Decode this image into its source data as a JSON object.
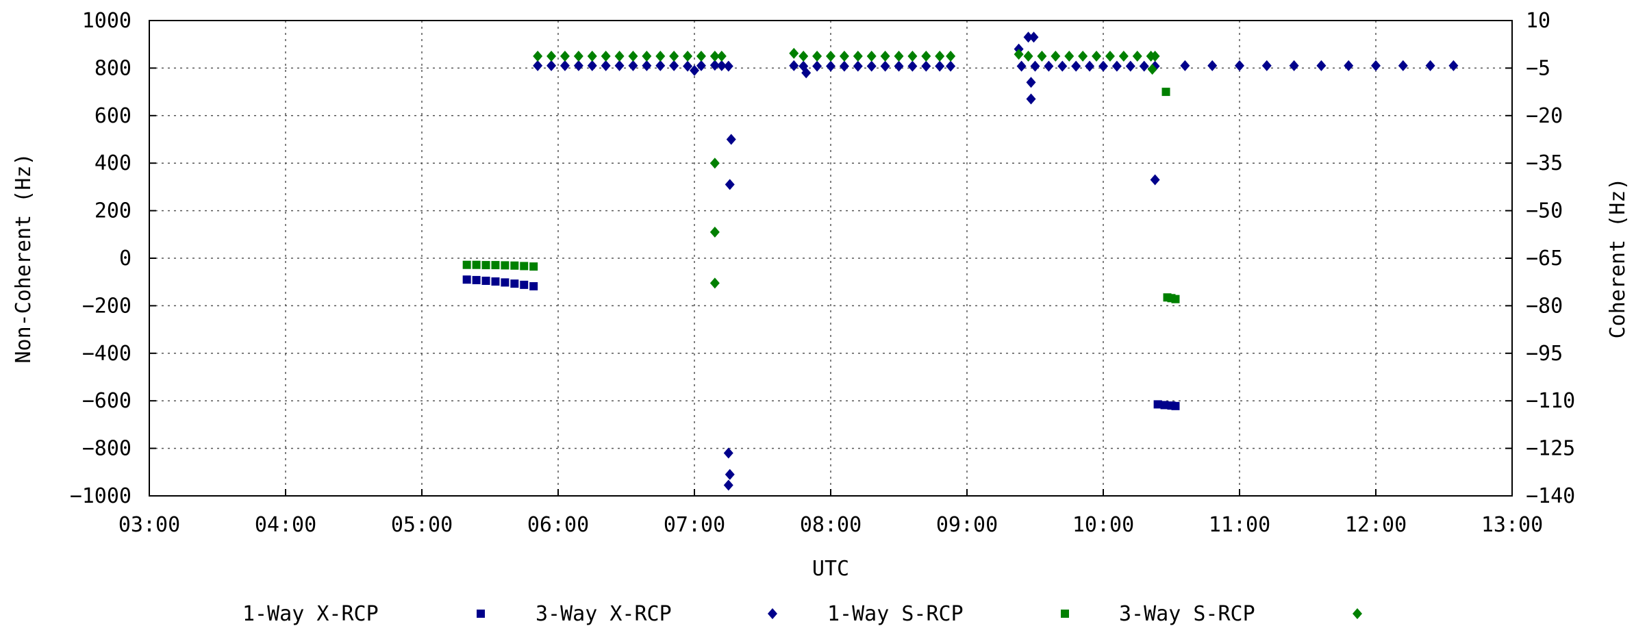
{
  "chart_data": {
    "type": "scatter",
    "xlabel": "UTC",
    "ylabel_left": "Non-Coherent (Hz)",
    "ylabel_right": "Coherent (Hz)",
    "xlim": [
      3,
      13
    ],
    "ylim_left": [
      -1000,
      1000
    ],
    "ylim_right": [
      -140,
      10
    ],
    "x_ticks": [
      "03:00",
      "04:00",
      "05:00",
      "06:00",
      "07:00",
      "08:00",
      "09:00",
      "10:00",
      "11:00",
      "12:00",
      "13:00"
    ],
    "y_ticks_left": [
      "1000",
      "800",
      "600",
      "400",
      "200",
      "0",
      "−200",
      "−400",
      "−600",
      "−800",
      "−1000"
    ],
    "y_ticks_right": [
      "10",
      "−5",
      "−20",
      "−35",
      "−50",
      "−65",
      "−80",
      "−95",
      "−110",
      "−125",
      "−140"
    ],
    "grid": true,
    "legend_position": "bottom",
    "series": [
      {
        "name": "1-Way X-RCP",
        "marker": "square",
        "color": "#00008b",
        "points": [
          [
            5.33,
            -90
          ],
          [
            5.4,
            -92
          ],
          [
            5.47,
            -95
          ],
          [
            5.54,
            -98
          ],
          [
            5.61,
            -102
          ],
          [
            5.68,
            -107
          ],
          [
            5.75,
            -112
          ],
          [
            5.82,
            -118
          ],
          [
            10.4,
            -615
          ],
          [
            10.45,
            -618
          ],
          [
            10.5,
            -620
          ],
          [
            10.53,
            -622
          ]
        ]
      },
      {
        "name": "3-Way X-RCP",
        "marker": "diamond",
        "color": "#00008b",
        "points": [
          [
            5.85,
            810
          ],
          [
            5.95,
            810
          ],
          [
            6.05,
            810
          ],
          [
            6.15,
            810
          ],
          [
            6.25,
            810
          ],
          [
            6.35,
            810
          ],
          [
            6.45,
            810
          ],
          [
            6.55,
            810
          ],
          [
            6.65,
            810
          ],
          [
            6.75,
            810
          ],
          [
            6.85,
            810
          ],
          [
            6.95,
            808
          ],
          [
            7.0,
            790
          ],
          [
            7.05,
            810
          ],
          [
            7.15,
            812
          ],
          [
            7.2,
            810
          ],
          [
            7.25,
            808
          ],
          [
            7.27,
            500
          ],
          [
            7.26,
            310
          ],
          [
            7.25,
            -820
          ],
          [
            7.26,
            -910
          ],
          [
            7.25,
            -955
          ],
          [
            7.73,
            810
          ],
          [
            7.8,
            808
          ],
          [
            7.82,
            780
          ],
          [
            7.9,
            808
          ],
          [
            8.0,
            808
          ],
          [
            8.1,
            808
          ],
          [
            8.2,
            808
          ],
          [
            8.3,
            808
          ],
          [
            8.4,
            808
          ],
          [
            8.5,
            808
          ],
          [
            8.6,
            808
          ],
          [
            8.7,
            808
          ],
          [
            8.8,
            808
          ],
          [
            8.88,
            808
          ],
          [
            9.38,
            880
          ],
          [
            9.45,
            930
          ],
          [
            9.49,
            930
          ],
          [
            9.47,
            740
          ],
          [
            9.47,
            670
          ],
          [
            9.4,
            808
          ],
          [
            9.5,
            808
          ],
          [
            9.6,
            808
          ],
          [
            9.7,
            808
          ],
          [
            9.8,
            808
          ],
          [
            9.9,
            808
          ],
          [
            10.0,
            808
          ],
          [
            10.1,
            808
          ],
          [
            10.2,
            808
          ],
          [
            10.3,
            808
          ],
          [
            10.38,
            808
          ],
          [
            10.38,
            330
          ],
          [
            10.6,
            810
          ],
          [
            10.8,
            810
          ],
          [
            11.0,
            810
          ],
          [
            11.2,
            810
          ],
          [
            11.4,
            810
          ],
          [
            11.6,
            810
          ],
          [
            11.8,
            810
          ],
          [
            12.0,
            810
          ],
          [
            12.2,
            810
          ],
          [
            12.4,
            810
          ],
          [
            12.57,
            810
          ]
        ]
      },
      {
        "name": "1-Way S-RCP",
        "marker": "square",
        "color": "#008000",
        "points": [
          [
            5.33,
            -28
          ],
          [
            5.4,
            -28
          ],
          [
            5.47,
            -29
          ],
          [
            5.54,
            -29
          ],
          [
            5.61,
            -30
          ],
          [
            5.68,
            -31
          ],
          [
            5.75,
            -33
          ],
          [
            5.82,
            -35
          ],
          [
            10.46,
            700
          ],
          [
            10.47,
            -165
          ],
          [
            10.5,
            -168
          ],
          [
            10.53,
            -172
          ]
        ]
      },
      {
        "name": "3-Way S-RCP",
        "marker": "diamond",
        "color": "#008000",
        "points": [
          [
            5.85,
            850
          ],
          [
            5.95,
            850
          ],
          [
            6.05,
            850
          ],
          [
            6.15,
            850
          ],
          [
            6.25,
            850
          ],
          [
            6.35,
            850
          ],
          [
            6.45,
            850
          ],
          [
            6.55,
            850
          ],
          [
            6.65,
            850
          ],
          [
            6.75,
            850
          ],
          [
            6.85,
            850
          ],
          [
            6.95,
            850
          ],
          [
            7.05,
            850
          ],
          [
            7.15,
            850
          ],
          [
            7.2,
            850
          ],
          [
            7.15,
            400
          ],
          [
            7.15,
            110
          ],
          [
            7.15,
            -105
          ],
          [
            7.73,
            862
          ],
          [
            7.8,
            850
          ],
          [
            7.9,
            850
          ],
          [
            8.0,
            850
          ],
          [
            8.1,
            850
          ],
          [
            8.2,
            850
          ],
          [
            8.3,
            850
          ],
          [
            8.4,
            850
          ],
          [
            8.5,
            850
          ],
          [
            8.6,
            850
          ],
          [
            8.7,
            850
          ],
          [
            8.8,
            850
          ],
          [
            8.88,
            850
          ],
          [
            9.38,
            858
          ],
          [
            9.45,
            850
          ],
          [
            9.55,
            850
          ],
          [
            9.65,
            850
          ],
          [
            9.75,
            850
          ],
          [
            9.85,
            850
          ],
          [
            9.95,
            850
          ],
          [
            10.05,
            850
          ],
          [
            10.15,
            850
          ],
          [
            10.25,
            850
          ],
          [
            10.35,
            850
          ],
          [
            10.38,
            850
          ],
          [
            10.36,
            795
          ]
        ]
      }
    ]
  }
}
